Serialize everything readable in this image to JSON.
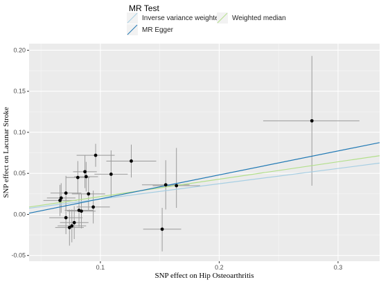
{
  "chart_data": {
    "type": "scatter",
    "xlabel": "SNP effect on Hip Osteoarthritis",
    "ylabel": "SNP effect on Lacunar Stroke",
    "xlim": [
      0.04,
      0.335
    ],
    "ylim": [
      -0.057,
      0.208
    ],
    "x_ticks": [
      0.1,
      0.2,
      0.3
    ],
    "x_tick_labels": [
      "0.1",
      "0.2",
      "0.3"
    ],
    "y_ticks": [
      -0.05,
      0.0,
      0.05,
      0.1,
      0.15,
      0.2
    ],
    "y_tick_labels": [
      "-0.05",
      "0.00",
      "0.05",
      "0.10",
      "0.15",
      "0.20"
    ],
    "grid": true,
    "legend": {
      "title": "MR Test",
      "position": "top",
      "entries": [
        {
          "label": "Inverse variance weighted",
          "color": "#a6cee3"
        },
        {
          "label": "Weighted median",
          "color": "#b2df8a"
        },
        {
          "label": "MR Egger",
          "color": "#1f78b4"
        }
      ]
    },
    "points": [
      {
        "x": 0.278,
        "y": 0.114,
        "x_low": 0.237,
        "x_high": 0.318,
        "y_low": 0.035,
        "y_high": 0.193
      },
      {
        "x": 0.126,
        "y": 0.065,
        "x_low": 0.105,
        "x_high": 0.147,
        "y_low": 0.045,
        "y_high": 0.085
      },
      {
        "x": 0.155,
        "y": 0.036,
        "x_low": 0.135,
        "x_high": 0.175,
        "y_low": 0.006,
        "y_high": 0.066
      },
      {
        "x": 0.164,
        "y": 0.035,
        "x_low": 0.144,
        "x_high": 0.184,
        "y_low": 0.008,
        "y_high": 0.081
      },
      {
        "x": 0.152,
        "y": -0.018,
        "x_low": 0.136,
        "x_high": 0.168,
        "y_low": -0.045,
        "y_high": 0.008
      },
      {
        "x": 0.096,
        "y": 0.072,
        "x_low": 0.08,
        "x_high": 0.112,
        "y_low": 0.058,
        "y_high": 0.086
      },
      {
        "x": 0.087,
        "y": 0.052,
        "x_low": 0.077,
        "x_high": 0.097,
        "y_low": 0.032,
        "y_high": 0.072
      },
      {
        "x": 0.088,
        "y": 0.046,
        "x_low": 0.078,
        "x_high": 0.098,
        "y_low": 0.028,
        "y_high": 0.064
      },
      {
        "x": 0.081,
        "y": 0.045,
        "x_low": 0.071,
        "x_high": 0.091,
        "y_low": 0.025,
        "y_high": 0.065
      },
      {
        "x": 0.109,
        "y": 0.049,
        "x_low": 0.095,
        "x_high": 0.123,
        "y_low": 0.02,
        "y_high": 0.078
      },
      {
        "x": 0.071,
        "y": 0.026,
        "x_low": 0.058,
        "x_high": 0.084,
        "y_low": 0.005,
        "y_high": 0.047
      },
      {
        "x": 0.067,
        "y": 0.02,
        "x_low": 0.055,
        "x_high": 0.079,
        "y_low": 0.002,
        "y_high": 0.038
      },
      {
        "x": 0.066,
        "y": 0.017,
        "x_low": 0.052,
        "x_high": 0.08,
        "y_low": -0.002,
        "y_high": 0.036
      },
      {
        "x": 0.09,
        "y": 0.025,
        "x_low": 0.076,
        "x_high": 0.104,
        "y_low": 0.005,
        "y_high": 0.045
      },
      {
        "x": 0.094,
        "y": 0.009,
        "x_low": 0.08,
        "x_high": 0.108,
        "y_low": -0.011,
        "y_high": 0.029
      },
      {
        "x": 0.082,
        "y": 0.005,
        "x_low": 0.07,
        "x_high": 0.094,
        "y_low": -0.015,
        "y_high": 0.025
      },
      {
        "x": 0.084,
        "y": 0.004,
        "x_low": 0.072,
        "x_high": 0.096,
        "y_low": -0.017,
        "y_high": 0.025
      },
      {
        "x": 0.071,
        "y": -0.004,
        "x_low": 0.057,
        "x_high": 0.085,
        "y_low": -0.024,
        "y_high": 0.016
      },
      {
        "x": 0.078,
        "y": -0.01,
        "x_low": 0.066,
        "x_high": 0.09,
        "y_low": -0.03,
        "y_high": 0.01
      },
      {
        "x": 0.076,
        "y": -0.014,
        "x_low": 0.064,
        "x_high": 0.088,
        "y_low": -0.034,
        "y_high": 0.006
      },
      {
        "x": 0.074,
        "y": -0.016,
        "x_low": 0.062,
        "x_high": 0.086,
        "y_low": -0.038,
        "y_high": 0.006
      }
    ],
    "series": [
      {
        "name": "Inverse variance weighted",
        "color": "#a6cee3",
        "line": {
          "x": [
            0.04,
            0.335
          ],
          "y": [
            0.0075,
            0.0625
          ]
        }
      },
      {
        "name": "Weighted median",
        "color": "#b2df8a",
        "line": {
          "x": [
            0.04,
            0.335
          ],
          "y": [
            0.009,
            0.0715
          ]
        }
      },
      {
        "name": "MR Egger",
        "color": "#1f78b4",
        "line": {
          "x": [
            0.04,
            0.335
          ],
          "y": [
            0.0015,
            0.0875
          ]
        }
      }
    ]
  }
}
